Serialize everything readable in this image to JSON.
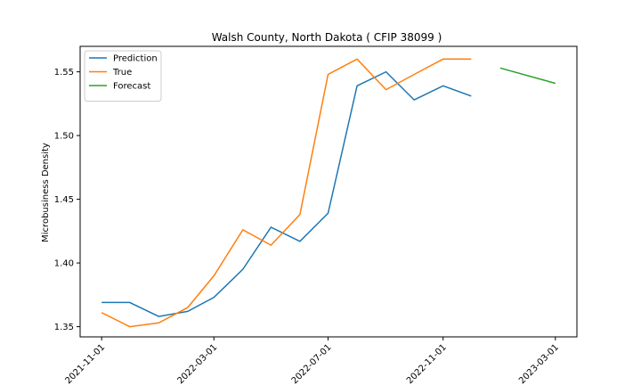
{
  "chart_data": {
    "type": "line",
    "title": "Walsh County, North Dakota ( CFIP 38099 )",
    "xlabel": "",
    "ylabel": "Microbusiness Density",
    "x_ticks": [
      "2021-11-01",
      "2022-03-01",
      "2022-07-01",
      "2022-11-01",
      "2023-03-01"
    ],
    "y_ticks": [
      "1.35",
      "1.40",
      "1.45",
      "1.50",
      "1.55"
    ],
    "ylim": [
      1.342,
      1.57
    ],
    "xlim": [
      "2021-10-09",
      "2023-03-24"
    ],
    "grid": false,
    "legend": "top-left",
    "series": [
      {
        "name": "Prediction",
        "color": "#1f77b4",
        "x": [
          "2021-11-01",
          "2021-12-01",
          "2022-01-01",
          "2022-02-01",
          "2022-03-01",
          "2022-04-01",
          "2022-05-01",
          "2022-06-01",
          "2022-07-01",
          "2022-08-01",
          "2022-09-01",
          "2022-10-01",
          "2022-11-01",
          "2022-12-01"
        ],
        "y": [
          1.369,
          1.369,
          1.358,
          1.362,
          1.373,
          1.395,
          1.428,
          1.417,
          1.439,
          1.539,
          1.55,
          1.528,
          1.539,
          1.531
        ]
      },
      {
        "name": "True",
        "color": "#ff7f0e",
        "x": [
          "2021-11-01",
          "2021-12-01",
          "2022-01-01",
          "2022-02-01",
          "2022-03-01",
          "2022-04-01",
          "2022-05-01",
          "2022-06-01",
          "2022-07-01",
          "2022-08-01",
          "2022-09-01",
          "2022-10-01",
          "2022-11-01",
          "2022-12-01"
        ],
        "y": [
          1.361,
          1.35,
          1.353,
          1.365,
          1.39,
          1.426,
          1.414,
          1.438,
          1.548,
          1.56,
          1.536,
          1.548,
          1.56,
          1.56
        ]
      },
      {
        "name": "Forecast",
        "color": "#2ca02c",
        "x": [
          "2023-01-01",
          "2023-03-01"
        ],
        "y": [
          1.553,
          1.541
        ]
      }
    ]
  }
}
